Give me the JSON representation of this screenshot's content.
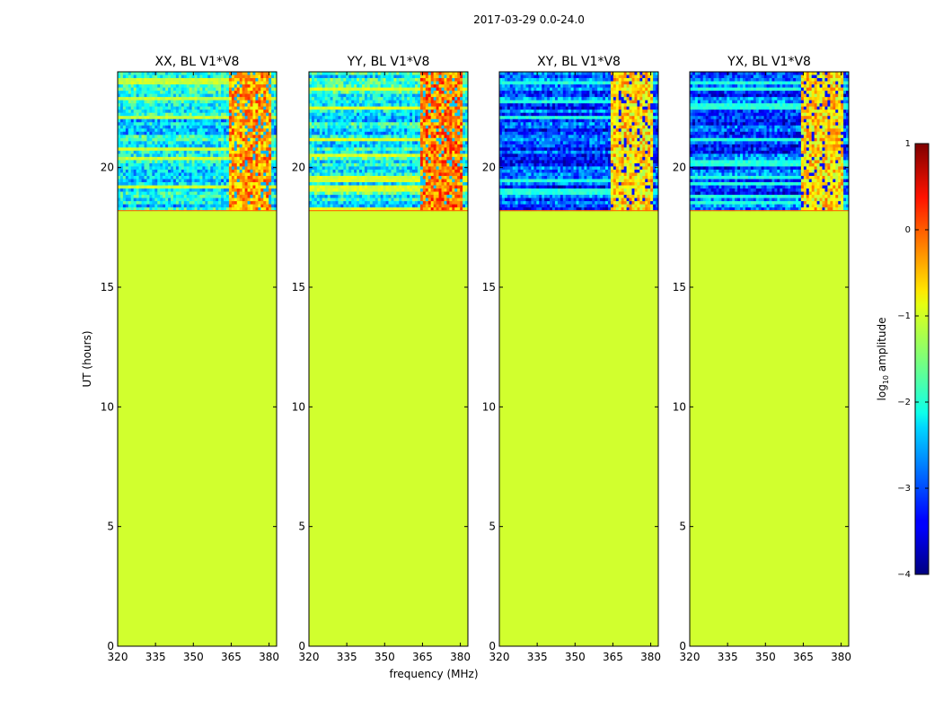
{
  "suptitle": "2017-03-29 0.0-24.0",
  "chart_data": {
    "type": "heatmap",
    "xlabel": "frequency (MHz)",
    "ylabel": "UT (hours)",
    "xlim": [
      320,
      383
    ],
    "ylim": [
      0,
      24
    ],
    "xticks": [
      320,
      335,
      350,
      365,
      380
    ],
    "yticks": [
      0,
      5,
      10,
      15,
      20
    ],
    "xtick_labels": [
      "320",
      "335",
      "350",
      "365",
      "380"
    ],
    "ytick_labels": [
      "0",
      "5",
      "10",
      "15",
      "20"
    ],
    "flat_region_hours": [
      0,
      18.2
    ],
    "flat_region_log10_amplitude": -1.1,
    "data_start_hour": 18.2,
    "panels": [
      {
        "title": "XX, BL V1*V8",
        "noise_level": -2.2,
        "rfi_band_mhz": [
          364,
          381
        ],
        "rfi_level": -0.4
      },
      {
        "title": "YY, BL V1*V8",
        "noise_level": -2.1,
        "rfi_band_mhz": [
          364,
          381
        ],
        "rfi_level": -0.2
      },
      {
        "title": "XY, BL V1*V8",
        "noise_level": -3.0,
        "rfi_band_mhz": [
          364,
          381
        ],
        "rfi_level": -0.7
      },
      {
        "title": "YX, BL V1*V8",
        "noise_level": -3.0,
        "rfi_band_mhz": [
          364,
          381
        ],
        "rfi_level": -0.7
      }
    ],
    "colorbar": {
      "label": "log10 amplitude",
      "label_main": "log",
      "label_sub": "10",
      "label_rest": " amplitude",
      "range": [
        -4,
        1
      ],
      "ticks": [
        1,
        0,
        -1,
        -2,
        -3,
        -4
      ],
      "tick_labels": [
        "1",
        "0",
        "−1",
        "−2",
        "−3",
        "−4"
      ],
      "colormap": "jet"
    }
  }
}
